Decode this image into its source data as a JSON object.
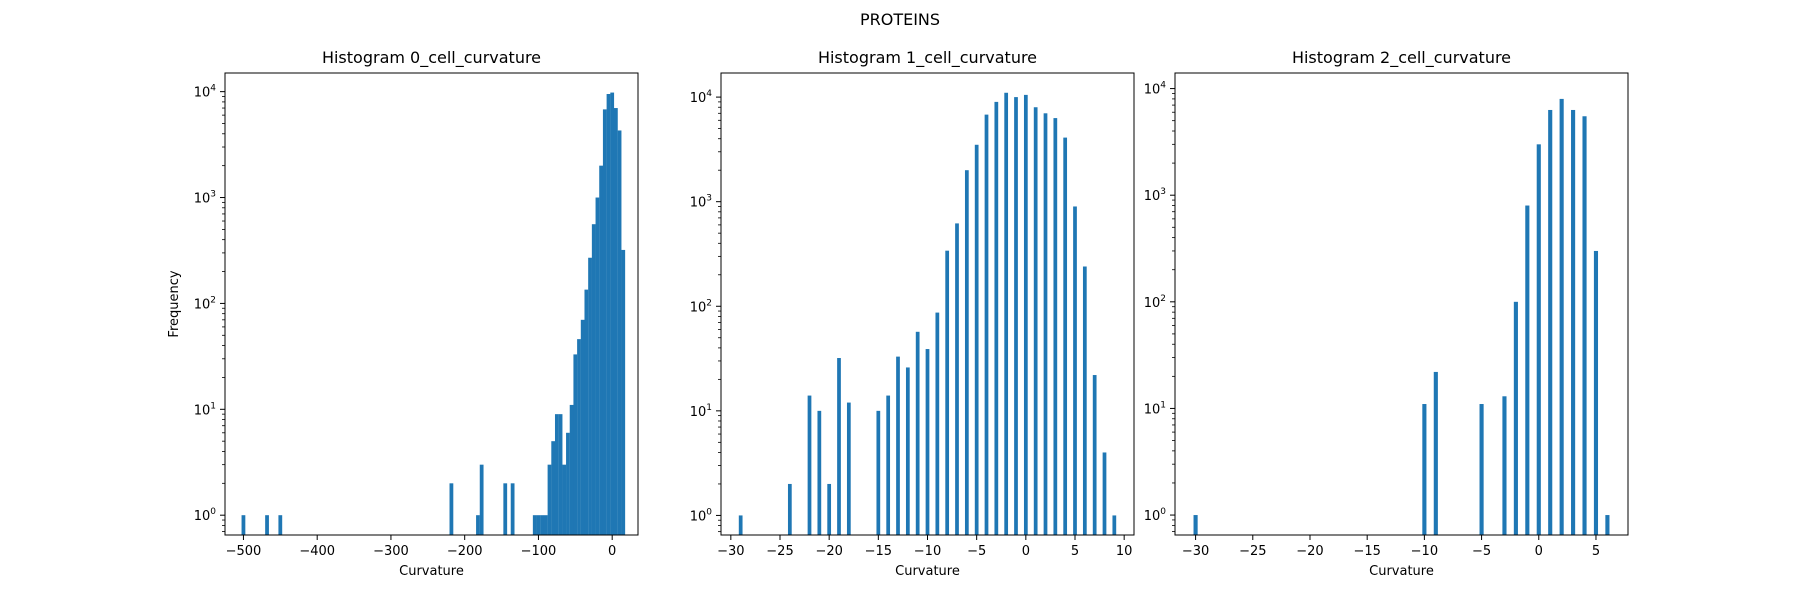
{
  "figure": {
    "suptitle": "PROTEINS",
    "bar_color": "#1f77b4"
  },
  "chart_data": [
    {
      "type": "bar",
      "title": "Histogram 0_cell_curvature",
      "xlabel": "Curvature",
      "ylabel": "Frequency",
      "yscale": "log",
      "xlim": [
        -525,
        35
      ],
      "ylim": [
        0.65,
        15000
      ],
      "xticks": [
        -500,
        -400,
        -300,
        -200,
        -100,
        0
      ],
      "xtick_labels": [
        "−500",
        "−400",
        "−300",
        "−200",
        "−100",
        "0"
      ],
      "yticks": [
        1,
        10,
        100,
        1000,
        10000
      ],
      "ytick_labels": [
        "10^0",
        "10^1",
        "10^2",
        "10^3",
        "10^4"
      ],
      "bin_width": 5.13,
      "bins": [
        {
          "x": -500,
          "y": 1
        },
        {
          "x": -468,
          "y": 1
        },
        {
          "x": -450,
          "y": 1
        },
        {
          "x": -218,
          "y": 2
        },
        {
          "x": -182,
          "y": 1
        },
        {
          "x": -177,
          "y": 3
        },
        {
          "x": -145,
          "y": 2
        },
        {
          "x": -135,
          "y": 2
        },
        {
          "x": -105,
          "y": 1
        },
        {
          "x": -100,
          "y": 1
        },
        {
          "x": -95,
          "y": 1
        },
        {
          "x": -90,
          "y": 1
        },
        {
          "x": -85,
          "y": 3
        },
        {
          "x": -80,
          "y": 5
        },
        {
          "x": -75,
          "y": 9
        },
        {
          "x": -70,
          "y": 9
        },
        {
          "x": -65,
          "y": 3
        },
        {
          "x": -60,
          "y": 6
        },
        {
          "x": -55,
          "y": 11
        },
        {
          "x": -50,
          "y": 33
        },
        {
          "x": -45,
          "y": 46
        },
        {
          "x": -40,
          "y": 70
        },
        {
          "x": -35,
          "y": 135
        },
        {
          "x": -30,
          "y": 270
        },
        {
          "x": -25,
          "y": 560
        },
        {
          "x": -20,
          "y": 1000
        },
        {
          "x": -15,
          "y": 2000
        },
        {
          "x": -10,
          "y": 6800
        },
        {
          "x": -5,
          "y": 9500
        },
        {
          "x": 0,
          "y": 9800
        },
        {
          "x": 5,
          "y": 7000
        },
        {
          "x": 10,
          "y": 4300
        },
        {
          "x": 15,
          "y": 320
        }
      ]
    },
    {
      "type": "bar",
      "title": "Histogram 1_cell_curvature",
      "xlabel": "Curvature",
      "ylabel": "",
      "yscale": "log",
      "xlim": [
        -31,
        11
      ],
      "ylim": [
        0.65,
        17000
      ],
      "xticks": [
        -30,
        -25,
        -20,
        -15,
        -10,
        -5,
        0,
        5,
        10
      ],
      "xtick_labels": [
        "−30",
        "−25",
        "−20",
        "−15",
        "−10",
        "−5",
        "0",
        "5",
        "10"
      ],
      "yticks": [
        1,
        10,
        100,
        1000,
        10000
      ],
      "ytick_labels": [
        "10^0",
        "10^1",
        "10^2",
        "10^3",
        "10^4"
      ],
      "bin_width": 0.38,
      "bins": [
        {
          "x": -29,
          "y": 1
        },
        {
          "x": -24,
          "y": 2
        },
        {
          "x": -22,
          "y": 14
        },
        {
          "x": -21,
          "y": 10
        },
        {
          "x": -20,
          "y": 2
        },
        {
          "x": -19,
          "y": 32
        },
        {
          "x": -18,
          "y": 12
        },
        {
          "x": -15,
          "y": 10
        },
        {
          "x": -14,
          "y": 14
        },
        {
          "x": -13,
          "y": 33
        },
        {
          "x": -12,
          "y": 26
        },
        {
          "x": -11,
          "y": 57
        },
        {
          "x": -10,
          "y": 39
        },
        {
          "x": -9,
          "y": 87
        },
        {
          "x": -8,
          "y": 340
        },
        {
          "x": -7,
          "y": 620
        },
        {
          "x": -6,
          "y": 2000
        },
        {
          "x": -5,
          "y": 3500
        },
        {
          "x": -4,
          "y": 6800
        },
        {
          "x": -3,
          "y": 9000
        },
        {
          "x": -2,
          "y": 11000
        },
        {
          "x": -1,
          "y": 10000
        },
        {
          "x": 0,
          "y": 10500
        },
        {
          "x": 1,
          "y": 8000
        },
        {
          "x": 2,
          "y": 7000
        },
        {
          "x": 3,
          "y": 6300
        },
        {
          "x": 4,
          "y": 4100
        },
        {
          "x": 5,
          "y": 900
        },
        {
          "x": 6,
          "y": 240
        },
        {
          "x": 7,
          "y": 22
        },
        {
          "x": 8,
          "y": 4
        },
        {
          "x": 9,
          "y": 1
        }
      ]
    },
    {
      "type": "bar",
      "title": "Histogram 2_cell_curvature",
      "xlabel": "Curvature",
      "ylabel": "",
      "yscale": "log",
      "xlim": [
        -31.8,
        7.8
      ],
      "ylim": [
        0.65,
        14000
      ],
      "xticks": [
        -30,
        -25,
        -20,
        -15,
        -10,
        -5,
        0,
        5
      ],
      "xtick_labels": [
        "−30",
        "−25",
        "−20",
        "−15",
        "−10",
        "−5",
        "0",
        "5"
      ],
      "yticks": [
        1,
        10,
        100,
        1000,
        10000
      ],
      "ytick_labels": [
        "10^0",
        "10^1",
        "10^2",
        "10^3",
        "10^4"
      ],
      "bin_width": 0.36,
      "bins": [
        {
          "x": -30,
          "y": 1
        },
        {
          "x": -10,
          "y": 11
        },
        {
          "x": -9,
          "y": 22
        },
        {
          "x": -5,
          "y": 11
        },
        {
          "x": -3,
          "y": 13
        },
        {
          "x": -2,
          "y": 100
        },
        {
          "x": -1,
          "y": 800
        },
        {
          "x": 0,
          "y": 3000
        },
        {
          "x": 1,
          "y": 6300
        },
        {
          "x": 2,
          "y": 8000
        },
        {
          "x": 3,
          "y": 6300
        },
        {
          "x": 4,
          "y": 5500
        },
        {
          "x": 5,
          "y": 300
        },
        {
          "x": 6,
          "y": 1
        }
      ]
    }
  ]
}
